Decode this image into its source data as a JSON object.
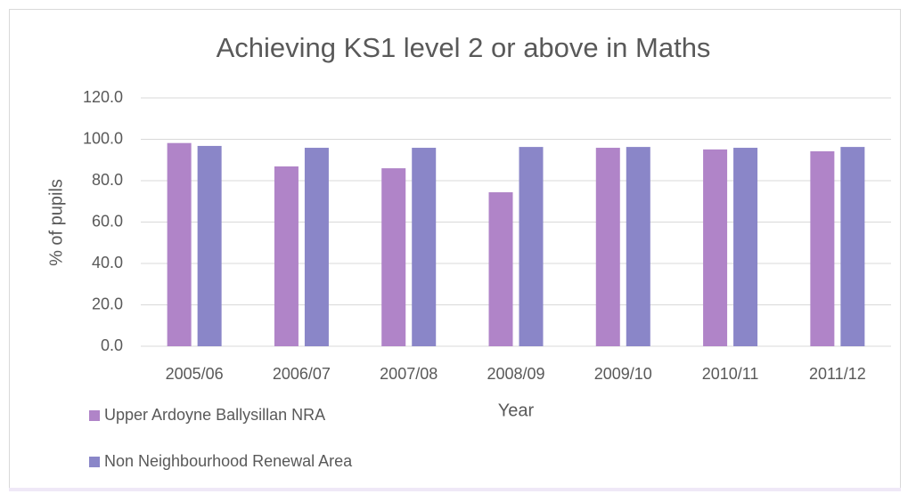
{
  "chart_data": {
    "type": "bar",
    "title": "Achieving KS1 level 2 or above in Maths",
    "x_label": "Year",
    "y_label": "% of pupils",
    "categories": [
      "2005/06",
      "2006/07",
      "2007/08",
      "2008/09",
      "2009/10",
      "2010/11",
      "2011/12"
    ],
    "series": [
      {
        "name": "Upper Ardoyne Ballysillan NRA",
        "color": "#b084c8",
        "values": [
          98.2,
          86.9,
          86.0,
          74.4,
          95.9,
          95.1,
          94.2
        ]
      },
      {
        "name": "Non Neighbourhood Renewal Area",
        "color": "#8a86c8",
        "values": [
          96.8,
          95.9,
          95.9,
          96.3,
          96.3,
          95.9,
          96.3
        ]
      }
    ],
    "ylim": [
      0,
      120
    ],
    "yticks": [
      {
        "value": 0,
        "label": "0.0"
      },
      {
        "value": 20,
        "label": "20.0"
      },
      {
        "value": 40,
        "label": "40.0"
      },
      {
        "value": 60,
        "label": "60.0"
      },
      {
        "value": 80,
        "label": "80.0"
      },
      {
        "value": 100,
        "label": "100.0"
      },
      {
        "value": 120,
        "label": "120.0"
      }
    ],
    "grid": true
  }
}
